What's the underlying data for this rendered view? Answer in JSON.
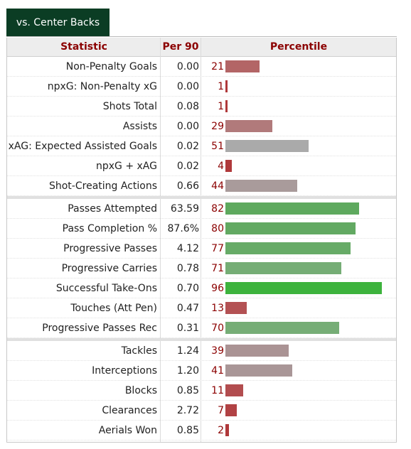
{
  "tab": {
    "label": "vs. Center Backs"
  },
  "header": {
    "statistic": "Statistic",
    "per90": "Per 90",
    "percentile": "Percentile"
  },
  "groups": [
    {
      "rows": [
        {
          "stat": "Non-Penalty Goals",
          "per90": "0.00",
          "percentile": 21,
          "color": "#b36566"
        },
        {
          "stat": "npxG: Non-Penalty xG",
          "per90": "0.00",
          "percentile": 1,
          "color": "#b0393b"
        },
        {
          "stat": "Shots Total",
          "per90": "0.08",
          "percentile": 1,
          "color": "#b0393b"
        },
        {
          "stat": "Assists",
          "per90": "0.00",
          "percentile": 29,
          "color": "#b17a7b"
        },
        {
          "stat": "xAG: Expected Assisted Goals",
          "per90": "0.02",
          "percentile": 51,
          "color": "#aaaaaa"
        },
        {
          "stat": "npxG + xAG",
          "per90": "0.02",
          "percentile": 4,
          "color": "#b0393b"
        },
        {
          "stat": "Shot-Creating Actions",
          "per90": "0.66",
          "percentile": 44,
          "color": "#a99b9b"
        }
      ]
    },
    {
      "rows": [
        {
          "stat": "Passes Attempted",
          "per90": "63.59",
          "percentile": 82,
          "color": "#5ea95e"
        },
        {
          "stat": "Pass Completion %",
          "per90": "87.6%",
          "percentile": 80,
          "color": "#62a962"
        },
        {
          "stat": "Progressive Passes",
          "per90": "4.12",
          "percentile": 77,
          "color": "#67ab67"
        },
        {
          "stat": "Progressive Carries",
          "per90": "0.78",
          "percentile": 71,
          "color": "#75ad75"
        },
        {
          "stat": "Successful Take-Ons",
          "per90": "0.70",
          "percentile": 96,
          "color": "#3db33d"
        },
        {
          "stat": "Touches (Att Pen)",
          "per90": "0.47",
          "percentile": 13,
          "color": "#b35153"
        },
        {
          "stat": "Progressive Passes Rec",
          "per90": "0.31",
          "percentile": 70,
          "color": "#76ad76"
        }
      ]
    },
    {
      "rows": [
        {
          "stat": "Tackles",
          "per90": "1.24",
          "percentile": 39,
          "color": "#aa9394"
        },
        {
          "stat": "Interceptions",
          "per90": "1.20",
          "percentile": 41,
          "color": "#a99697"
        },
        {
          "stat": "Blocks",
          "per90": "0.85",
          "percentile": 11,
          "color": "#b24d4f"
        },
        {
          "stat": "Clearances",
          "per90": "2.72",
          "percentile": 7,
          "color": "#b14244"
        },
        {
          "stat": "Aerials Won",
          "per90": "0.85",
          "percentile": 2,
          "color": "#b0393b"
        }
      ]
    }
  ]
}
